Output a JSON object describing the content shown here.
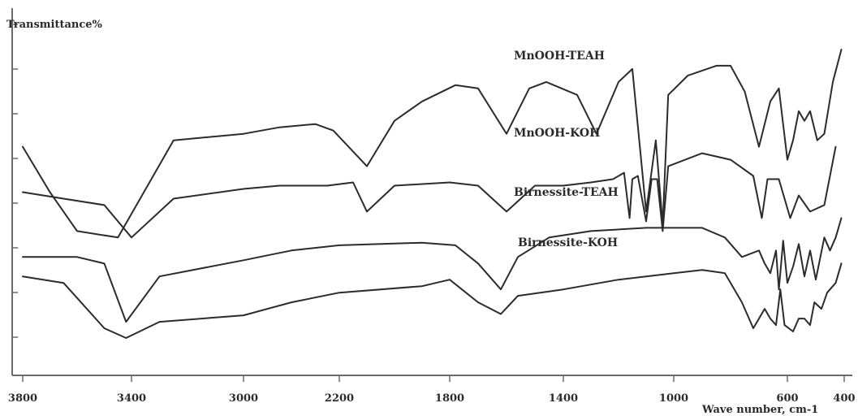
{
  "chart_data": {
    "type": "line",
    "ylabel": "Transmittance%",
    "xlabel": "Wave number, cm-1",
    "x_tick_labels": [
      "3800",
      "3400",
      "3000",
      "2200",
      "1800",
      "1400",
      "1000",
      "600",
      "400"
    ],
    "y_ticks": 8,
    "series": [
      {
        "name": "MnOOH-TEAH",
        "points": [
          [
            3800,
            0.72
          ],
          [
            3700,
            0.79
          ],
          [
            3600,
            0.85
          ],
          [
            3450,
            0.86
          ],
          [
            3250,
            0.71
          ],
          [
            3000,
            0.7
          ],
          [
            2700,
            0.69
          ],
          [
            2400,
            0.685
          ],
          [
            2250,
            0.695
          ],
          [
            2100,
            0.75
          ],
          [
            2000,
            0.68
          ],
          [
            1900,
            0.65
          ],
          [
            1780,
            0.625
          ],
          [
            1700,
            0.63
          ],
          [
            1600,
            0.7
          ],
          [
            1520,
            0.63
          ],
          [
            1460,
            0.62
          ],
          [
            1350,
            0.64
          ],
          [
            1280,
            0.7
          ],
          [
            1200,
            0.62
          ],
          [
            1150,
            0.6
          ],
          [
            1100,
            0.82
          ],
          [
            1065,
            0.71
          ],
          [
            1040,
            0.84
          ],
          [
            1020,
            0.64
          ],
          [
            950,
            0.61
          ],
          [
            850,
            0.595
          ],
          [
            800,
            0.595
          ],
          [
            750,
            0.635
          ],
          [
            700,
            0.72
          ],
          [
            660,
            0.65
          ],
          [
            630,
            0.63
          ],
          [
            600,
            0.74
          ],
          [
            580,
            0.71
          ],
          [
            560,
            0.665
          ],
          [
            540,
            0.68
          ],
          [
            520,
            0.665
          ],
          [
            495,
            0.71
          ],
          [
            470,
            0.7
          ],
          [
            440,
            0.62
          ],
          [
            410,
            0.57
          ]
        ]
      },
      {
        "name": "MnOOH-KOH",
        "points": [
          [
            3800,
            0.79
          ],
          [
            3650,
            0.8
          ],
          [
            3500,
            0.81
          ],
          [
            3400,
            0.86
          ],
          [
            3250,
            0.8
          ],
          [
            3000,
            0.785
          ],
          [
            2700,
            0.78
          ],
          [
            2300,
            0.78
          ],
          [
            2150,
            0.775
          ],
          [
            2100,
            0.82
          ],
          [
            2000,
            0.78
          ],
          [
            1800,
            0.775
          ],
          [
            1700,
            0.78
          ],
          [
            1600,
            0.82
          ],
          [
            1500,
            0.78
          ],
          [
            1400,
            0.78
          ],
          [
            1300,
            0.775
          ],
          [
            1220,
            0.77
          ],
          [
            1180,
            0.76
          ],
          [
            1160,
            0.83
          ],
          [
            1150,
            0.77
          ],
          [
            1130,
            0.765
          ],
          [
            1100,
            0.835
          ],
          [
            1080,
            0.77
          ],
          [
            1060,
            0.77
          ],
          [
            1040,
            0.85
          ],
          [
            1020,
            0.75
          ],
          [
            900,
            0.73
          ],
          [
            800,
            0.74
          ],
          [
            720,
            0.765
          ],
          [
            690,
            0.83
          ],
          [
            670,
            0.77
          ],
          [
            630,
            0.77
          ],
          [
            590,
            0.83
          ],
          [
            560,
            0.795
          ],
          [
            520,
            0.82
          ],
          [
            470,
            0.81
          ],
          [
            430,
            0.72
          ]
        ]
      },
      {
        "name": "Birnessite-TEAH",
        "points": [
          [
            3800,
            0.89
          ],
          [
            3600,
            0.89
          ],
          [
            3500,
            0.9
          ],
          [
            3420,
            0.99
          ],
          [
            3300,
            0.92
          ],
          [
            3000,
            0.895
          ],
          [
            2600,
            0.88
          ],
          [
            2200,
            0.872
          ],
          [
            1900,
            0.868
          ],
          [
            1780,
            0.872
          ],
          [
            1700,
            0.9
          ],
          [
            1620,
            0.94
          ],
          [
            1560,
            0.89
          ],
          [
            1450,
            0.86
          ],
          [
            1300,
            0.85
          ],
          [
            1100,
            0.845
          ],
          [
            900,
            0.845
          ],
          [
            820,
            0.86
          ],
          [
            760,
            0.89
          ],
          [
            700,
            0.88
          ],
          [
            680,
            0.9
          ],
          [
            660,
            0.915
          ],
          [
            640,
            0.88
          ],
          [
            630,
            0.94
          ],
          [
            615,
            0.865
          ],
          [
            600,
            0.93
          ],
          [
            580,
            0.905
          ],
          [
            560,
            0.87
          ],
          [
            540,
            0.92
          ],
          [
            520,
            0.88
          ],
          [
            500,
            0.925
          ],
          [
            470,
            0.86
          ],
          [
            450,
            0.88
          ],
          [
            430,
            0.86
          ],
          [
            410,
            0.83
          ]
        ]
      },
      {
        "name": "Birnessite-KOH",
        "points": [
          [
            3800,
            0.92
          ],
          [
            3650,
            0.93
          ],
          [
            3500,
            1.0
          ],
          [
            3420,
            1.015
          ],
          [
            3300,
            0.99
          ],
          [
            3000,
            0.98
          ],
          [
            2600,
            0.96
          ],
          [
            2200,
            0.945
          ],
          [
            1900,
            0.935
          ],
          [
            1800,
            0.925
          ],
          [
            1700,
            0.96
          ],
          [
            1620,
            0.978
          ],
          [
            1560,
            0.95
          ],
          [
            1400,
            0.94
          ],
          [
            1200,
            0.925
          ],
          [
            1000,
            0.915
          ],
          [
            900,
            0.91
          ],
          [
            820,
            0.915
          ],
          [
            760,
            0.96
          ],
          [
            720,
            1.0
          ],
          [
            700,
            0.985
          ],
          [
            680,
            0.97
          ],
          [
            660,
            0.985
          ],
          [
            640,
            0.995
          ],
          [
            625,
            0.94
          ],
          [
            610,
            0.995
          ],
          [
            580,
            1.005
          ],
          [
            560,
            0.985
          ],
          [
            540,
            0.985
          ],
          [
            520,
            0.995
          ],
          [
            505,
            0.96
          ],
          [
            480,
            0.97
          ],
          [
            460,
            0.945
          ],
          [
            430,
            0.93
          ],
          [
            410,
            0.9
          ]
        ]
      }
    ]
  }
}
